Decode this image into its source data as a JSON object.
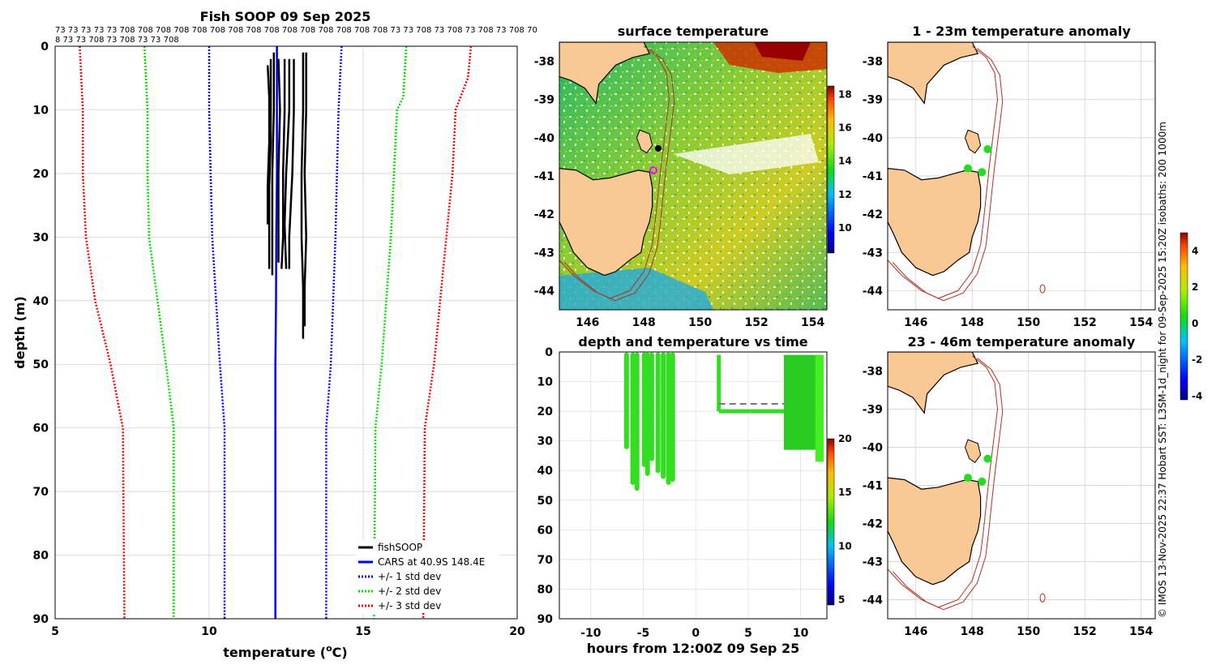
{
  "chart_data": [
    {
      "type": "line",
      "title": "Fish SOOP 09 Sep 2025",
      "vessel_codes_line1": "73 73 73 73 73 708 708 708 708 708 708 708 708 708 708 708 708 708 708 708 73 73 708 73 708 73 708 73 708 70",
      "vessel_codes_line2": "8 73 73 708 73 708 73 73 708",
      "xlabel": "temperature (",
      "xlabel_sup": "o",
      "xlabel_end": "C)",
      "ylabel": "depth (m)",
      "xlim": [
        5,
        20
      ],
      "ylim": [
        0,
        90
      ],
      "xticks": [
        "5",
        "10",
        "15",
        "20"
      ],
      "yticks": [
        "0",
        "10",
        "20",
        "30",
        "40",
        "50",
        "60",
        "70",
        "80",
        "90"
      ],
      "legend": [
        "fishSOOP",
        "CARS at 40.9S 148.4E",
        "+/- 1 std dev",
        "+/- 2 std dev",
        "+/- 3 std dev"
      ],
      "cars_mean": {
        "depth": [
          0,
          10,
          20,
          30,
          40,
          50,
          60,
          70,
          80,
          90
        ],
        "temp": [
          12.2,
          12.2,
          12.2,
          12.18,
          12.17,
          12.15,
          12.15,
          12.15,
          12.15,
          12.15
        ]
      },
      "std_lines": [
        {
          "name": "+1",
          "color": "#0000ff",
          "depth": [
            0,
            10,
            20,
            30,
            50,
            60,
            90
          ],
          "temp": [
            14.3,
            14.2,
            14.15,
            14.1,
            13.95,
            13.8,
            13.8
          ]
        },
        {
          "name": "-1",
          "color": "#0000ff",
          "depth": [
            0,
            10,
            20,
            30,
            50,
            60,
            90
          ],
          "temp": [
            10.0,
            10.0,
            10.05,
            10.1,
            10.35,
            10.5,
            10.5
          ]
        },
        {
          "name": "+2",
          "color": "#00dd00",
          "depth": [
            0,
            8,
            10,
            20,
            30,
            50,
            60,
            90
          ],
          "temp": [
            16.4,
            16.3,
            16.1,
            16.0,
            15.9,
            15.6,
            15.4,
            15.35
          ]
        },
        {
          "name": "-2",
          "color": "#00dd00",
          "depth": [
            0,
            10,
            20,
            30,
            50,
            60,
            90
          ],
          "temp": [
            7.9,
            8.0,
            8.0,
            8.05,
            8.6,
            8.85,
            8.85
          ]
        },
        {
          "name": "+3",
          "color": "#ff0000",
          "depth": [
            0,
            5,
            10,
            20,
            30,
            50,
            60,
            90
          ],
          "temp": [
            18.5,
            18.4,
            18.0,
            17.9,
            17.7,
            17.3,
            17.0,
            16.95
          ]
        },
        {
          "name": "-3",
          "color": "#ff0000",
          "depth": [
            0,
            10,
            20,
            30,
            40,
            50,
            60,
            90
          ],
          "temp": [
            5.8,
            5.9,
            5.9,
            6.0,
            6.3,
            6.8,
            7.2,
            7.25
          ]
        }
      ],
      "profiles": [
        {
          "depth": [
            3,
            8,
            15,
            22,
            28
          ],
          "temp": [
            11.9,
            11.95,
            11.95,
            11.9,
            11.9
          ]
        },
        {
          "depth": [
            2,
            8,
            15,
            22,
            30,
            35
          ],
          "temp": [
            12.0,
            12.0,
            12.0,
            11.95,
            11.95,
            11.95
          ]
        },
        {
          "depth": [
            1,
            10,
            20,
            30,
            36
          ],
          "temp": [
            12.1,
            12.1,
            12.05,
            12.05,
            12.05
          ]
        },
        {
          "depth": [
            2,
            10,
            20,
            30,
            34
          ],
          "temp": [
            12.25,
            12.3,
            12.25,
            12.25,
            12.25
          ]
        },
        {
          "depth": [
            2,
            10,
            20,
            25,
            30,
            35
          ],
          "temp": [
            12.45,
            12.45,
            12.4,
            12.4,
            12.4,
            12.35
          ]
        },
        {
          "depth": [
            2,
            10,
            20,
            28,
            35
          ],
          "temp": [
            12.6,
            12.6,
            12.5,
            12.45,
            12.5
          ]
        },
        {
          "depth": [
            2,
            10,
            20,
            30,
            35
          ],
          "temp": [
            12.75,
            12.75,
            12.7,
            12.6,
            12.6
          ]
        },
        {
          "depth": [
            1,
            10,
            20,
            30,
            38,
            46
          ],
          "temp": [
            13.05,
            13.05,
            13.0,
            13.0,
            13.05,
            13.05
          ]
        },
        {
          "depth": [
            1,
            10,
            20,
            30,
            38,
            44
          ],
          "temp": [
            13.15,
            13.15,
            13.1,
            13.15,
            13.1,
            13.1
          ]
        }
      ]
    },
    {
      "type": "heatmap",
      "title": "surface temperature",
      "xlim": [
        145,
        154.5
      ],
      "ylim": [
        -44.5,
        -37.5
      ],
      "xticks": [
        "146",
        "148",
        "150",
        "152",
        "154"
      ],
      "yticks": [
        "-38",
        "-39",
        "-40",
        "-41",
        "-42",
        "-43",
        "-44"
      ],
      "colorbar_range": [
        8.5,
        18.5
      ],
      "colorbar_ticks": [
        "18",
        "16",
        "14",
        "12",
        "10"
      ]
    },
    {
      "type": "scatter",
      "title": "depth and temperature vs time",
      "xlabel": "hours from 12:00Z 09 Sep 25",
      "xlim": [
        -13,
        12.5
      ],
      "ylim": [
        0,
        90
      ],
      "xticks": [
        "-10",
        "-5",
        "0",
        "5",
        "10"
      ],
      "yticks": [
        "0",
        "10",
        "20",
        "30",
        "40",
        "50",
        "60",
        "70",
        "80",
        "90"
      ],
      "colorbar_range": [
        4.5,
        20
      ],
      "colorbar_ticks": [
        "20",
        "15",
        "10",
        "5"
      ],
      "casts": [
        {
          "t": -6.6,
          "max_depth": 32
        },
        {
          "t": -6.0,
          "max_depth": 44
        },
        {
          "t": -5.6,
          "max_depth": 46
        },
        {
          "t": -4.9,
          "max_depth": 38
        },
        {
          "t": -4.6,
          "max_depth": 41
        },
        {
          "t": -4.2,
          "max_depth": 36
        },
        {
          "t": -3.6,
          "max_depth": 40
        },
        {
          "t": -3.1,
          "max_depth": 42
        },
        {
          "t": -2.6,
          "max_depth": 44
        },
        {
          "t": -2.2,
          "max_depth": 43
        }
      ]
    },
    {
      "type": "map",
      "title": "1 - 23m temperature anomaly",
      "xlim": [
        145,
        154.5
      ],
      "ylim": [
        -44.5,
        -37.5
      ],
      "xticks": [
        "146",
        "148",
        "150",
        "152",
        "154"
      ],
      "yticks": [
        "-38",
        "-39",
        "-40",
        "-41",
        "-42",
        "-43",
        "-44"
      ],
      "anomaly_points": [
        {
          "lon": 148.55,
          "lat": -40.3
        },
        {
          "lon": 147.85,
          "lat": -40.8
        },
        {
          "lon": 148.35,
          "lat": -40.9
        }
      ]
    },
    {
      "type": "map",
      "title": "23 - 46m temperature anomaly",
      "xlim": [
        145,
        154.5
      ],
      "ylim": [
        -44.5,
        -37.5
      ],
      "xticks": [
        "146",
        "148",
        "150",
        "152",
        "154"
      ],
      "yticks": [
        "-38",
        "-39",
        "-40",
        "-41",
        "-42",
        "-43",
        "-44"
      ],
      "anomaly_points": [
        {
          "lon": 148.55,
          "lat": -40.3
        },
        {
          "lon": 147.85,
          "lat": -40.8
        },
        {
          "lon": 148.35,
          "lat": -40.9
        }
      ],
      "colorbar_range": [
        -4.2,
        5
      ],
      "colorbar_ticks": [
        "4",
        "2",
        "0",
        "-2",
        "-4"
      ]
    }
  ],
  "side_caption": "© IMOS 13-Nov-2025 22:37 Hobart SST: L3SM-1d_night for 09-Sep-2025 15:20Z isobaths: 200  1000m",
  "colors": {
    "land": "#f8c994",
    "isobath": "#b03020",
    "cars": "#0000ff",
    "profiles": "#000000",
    "points": "#22dd22"
  }
}
